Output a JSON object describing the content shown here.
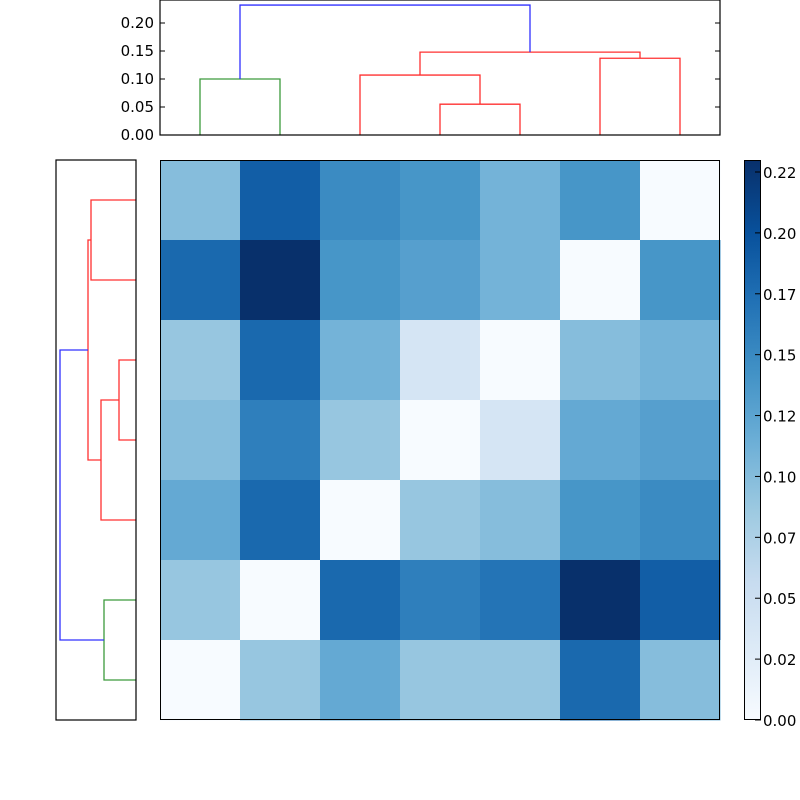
{
  "chart_data": {
    "type": "heatmap",
    "title": "",
    "description": "Clustered distance-matrix heatmap with top and left dendrograms and a colorbar",
    "matrix": {
      "rows": 7,
      "cols": 7,
      "values": [
        [
          0.1,
          0.19,
          0.15,
          0.14,
          0.11,
          0.14,
          0.0
        ],
        [
          0.18,
          0.23,
          0.14,
          0.13,
          0.11,
          0.0,
          0.14
        ],
        [
          0.09,
          0.18,
          0.11,
          0.04,
          0.0,
          0.1,
          0.11
        ],
        [
          0.1,
          0.16,
          0.09,
          0.0,
          0.04,
          0.12,
          0.13
        ],
        [
          0.12,
          0.18,
          0.0,
          0.09,
          0.1,
          0.14,
          0.15
        ],
        [
          0.09,
          0.0,
          0.18,
          0.16,
          0.17,
          0.23,
          0.19
        ],
        [
          0.0,
          0.09,
          0.12,
          0.09,
          0.09,
          0.18,
          0.1
        ]
      ],
      "colormap": "Blues"
    },
    "colorbar": {
      "ticks": [
        "0.00",
        "0.02",
        "0.05",
        "0.07",
        "0.10",
        "0.12",
        "0.15",
        "0.17",
        "0.20",
        "0.22"
      ],
      "vmin": 0.0,
      "vmax": 0.23
    },
    "top_dendrogram": {
      "yticks": [
        "0.00",
        "0.05",
        "0.10",
        "0.15",
        "0.20"
      ],
      "ylim": [
        0,
        0.24
      ],
      "leaves": 7,
      "links": [
        {
          "children": [
            0,
            1
          ],
          "height": 0.1,
          "color": "green"
        },
        {
          "children": [
            3,
            4
          ],
          "height": 0.055,
          "color": "red"
        },
        {
          "children": [
            2,
            "3-4"
          ],
          "height": 0.107,
          "color": "red"
        },
        {
          "children": [
            5,
            6
          ],
          "height": 0.137,
          "color": "red"
        },
        {
          "children": [
            "2-4",
            "5-6"
          ],
          "height": 0.148,
          "color": "red"
        },
        {
          "children": [
            "0-1",
            "2-6"
          ],
          "height": 0.232,
          "color": "blue"
        }
      ]
    },
    "left_dendrogram": {
      "orientation": "left",
      "leaves": 7,
      "links": [
        {
          "children": [
            0,
            1
          ],
          "depth": 0.55,
          "color": "red"
        },
        {
          "children": [
            2,
            3
          ],
          "depth": 0.22,
          "color": "red"
        },
        {
          "children": [
            "2-3",
            4
          ],
          "depth": 0.45,
          "color": "red"
        },
        {
          "children": [
            "0-1",
            "2-4"
          ],
          "depth": 0.62,
          "color": "red"
        },
        {
          "children": [
            5,
            6
          ],
          "depth": 0.4,
          "color": "green"
        },
        {
          "children": [
            "0-4",
            "5-6"
          ],
          "depth": 0.95,
          "color": "blue"
        }
      ]
    }
  },
  "colors": {
    "cluster_green": "#3c9a3c",
    "cluster_red": "#ff3030",
    "cluster_blue": "#3030ff",
    "axis": "#000000"
  }
}
